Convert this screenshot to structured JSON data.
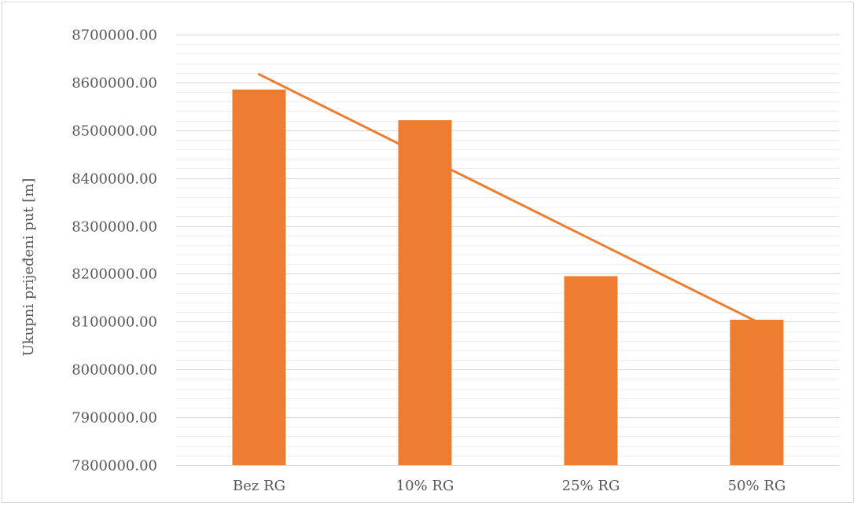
{
  "chart_data": {
    "type": "bar",
    "title": "",
    "ylabel": "Ukupni prijeđeni put [m]",
    "xlabel": "",
    "categories": [
      "Bez RG",
      "10% RG",
      "25% RG",
      "50% RG"
    ],
    "series": [
      {
        "values": [
          8585000,
          8521000,
          8195000,
          8104000
        ]
      }
    ],
    "trendline": {
      "type": "linear",
      "start": 8617000,
      "end": 8100000
    },
    "ylim": [
      7800000,
      8700000
    ],
    "y_major_step": 100000,
    "y_minor_step": 20000,
    "y_tick_labels": [
      "7800000.00",
      "7900000.00",
      "8000000.00",
      "8100000.00",
      "8200000.00",
      "8300000.00",
      "8400000.00",
      "8500000.00",
      "8600000.00",
      "8700000.00"
    ],
    "grid": true,
    "legend": "none",
    "colors": {
      "bar": "#ED7D31",
      "trend": "#ED7D31",
      "major_grid": "#d9d9d9",
      "minor_grid": "#f0f0f0"
    }
  }
}
